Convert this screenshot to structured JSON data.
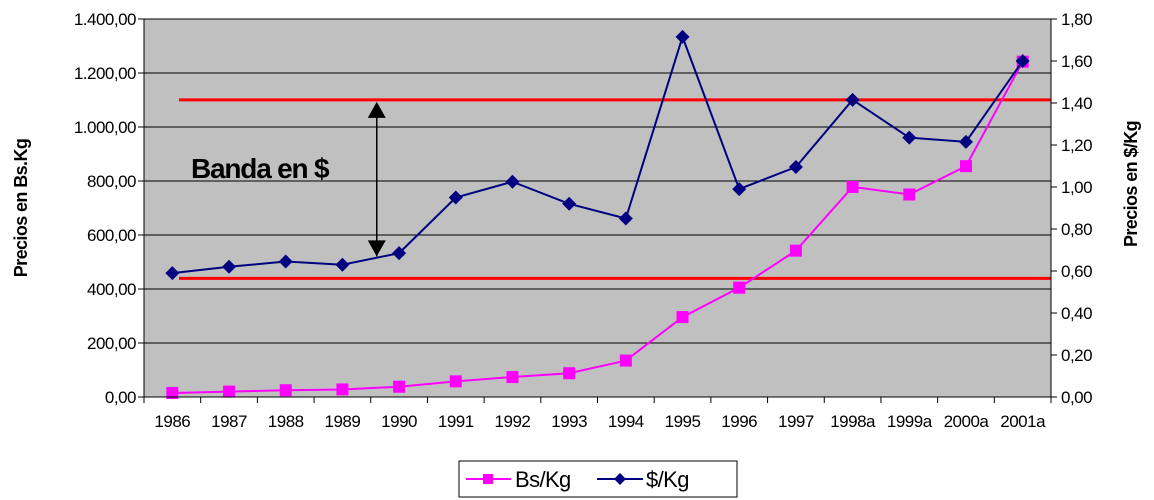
{
  "chart_data": {
    "type": "line",
    "categories": [
      "1986",
      "1987",
      "1988",
      "1989",
      "1990",
      "1991",
      "1992",
      "1993",
      "1994",
      "1995",
      "1996",
      "1997",
      "1998a",
      "1999a",
      "2000a",
      "2001a"
    ],
    "series": [
      {
        "name": "Bs/Kg",
        "axis": "left",
        "color": "#ff00ff",
        "marker": "square",
        "values": [
          15,
          20,
          25,
          28,
          38,
          58,
          74,
          88,
          135,
          296,
          405,
          542,
          778,
          750,
          855,
          1242
        ]
      },
      {
        "name": "$/Kg",
        "axis": "right",
        "color": "#000080",
        "marker": "diamond",
        "values": [
          0.59,
          0.62,
          0.645,
          0.63,
          0.685,
          0.95,
          1.025,
          0.92,
          0.85,
          1.715,
          0.99,
          1.095,
          1.415,
          1.235,
          1.215,
          1.6
        ]
      }
    ],
    "y_left": {
      "label": "Precios en Bs.Kg",
      "ylim": [
        0,
        1400
      ],
      "ticks": [
        0,
        200,
        400,
        600,
        800,
        1000,
        1200,
        1400
      ],
      "tick_labels": [
        "0,00",
        "200,00",
        "400,00",
        "600,00",
        "800,00",
        "1.000,00",
        "1.200,00",
        "1.400,00"
      ]
    },
    "y_right": {
      "label": "Precios en $/Kg",
      "ylim": [
        0,
        1.8
      ],
      "ticks": [
        0,
        0.2,
        0.4,
        0.6,
        0.8,
        1.0,
        1.2,
        1.4,
        1.6,
        1.8
      ],
      "tick_labels": [
        "0,00",
        "0,20",
        "0,40",
        "0,60",
        "0,80",
        "1,00",
        "1,20",
        "1,40",
        "1,60",
        "1,80"
      ]
    },
    "band": {
      "upper": 1.415,
      "lower": 0.565,
      "axis": "right",
      "color": "#ff0000",
      "label": "Banda en $",
      "arrow_at_category": "1989"
    },
    "plot_background": "#c0c0c0",
    "grid": "horizontal",
    "legend_position": "bottom"
  }
}
